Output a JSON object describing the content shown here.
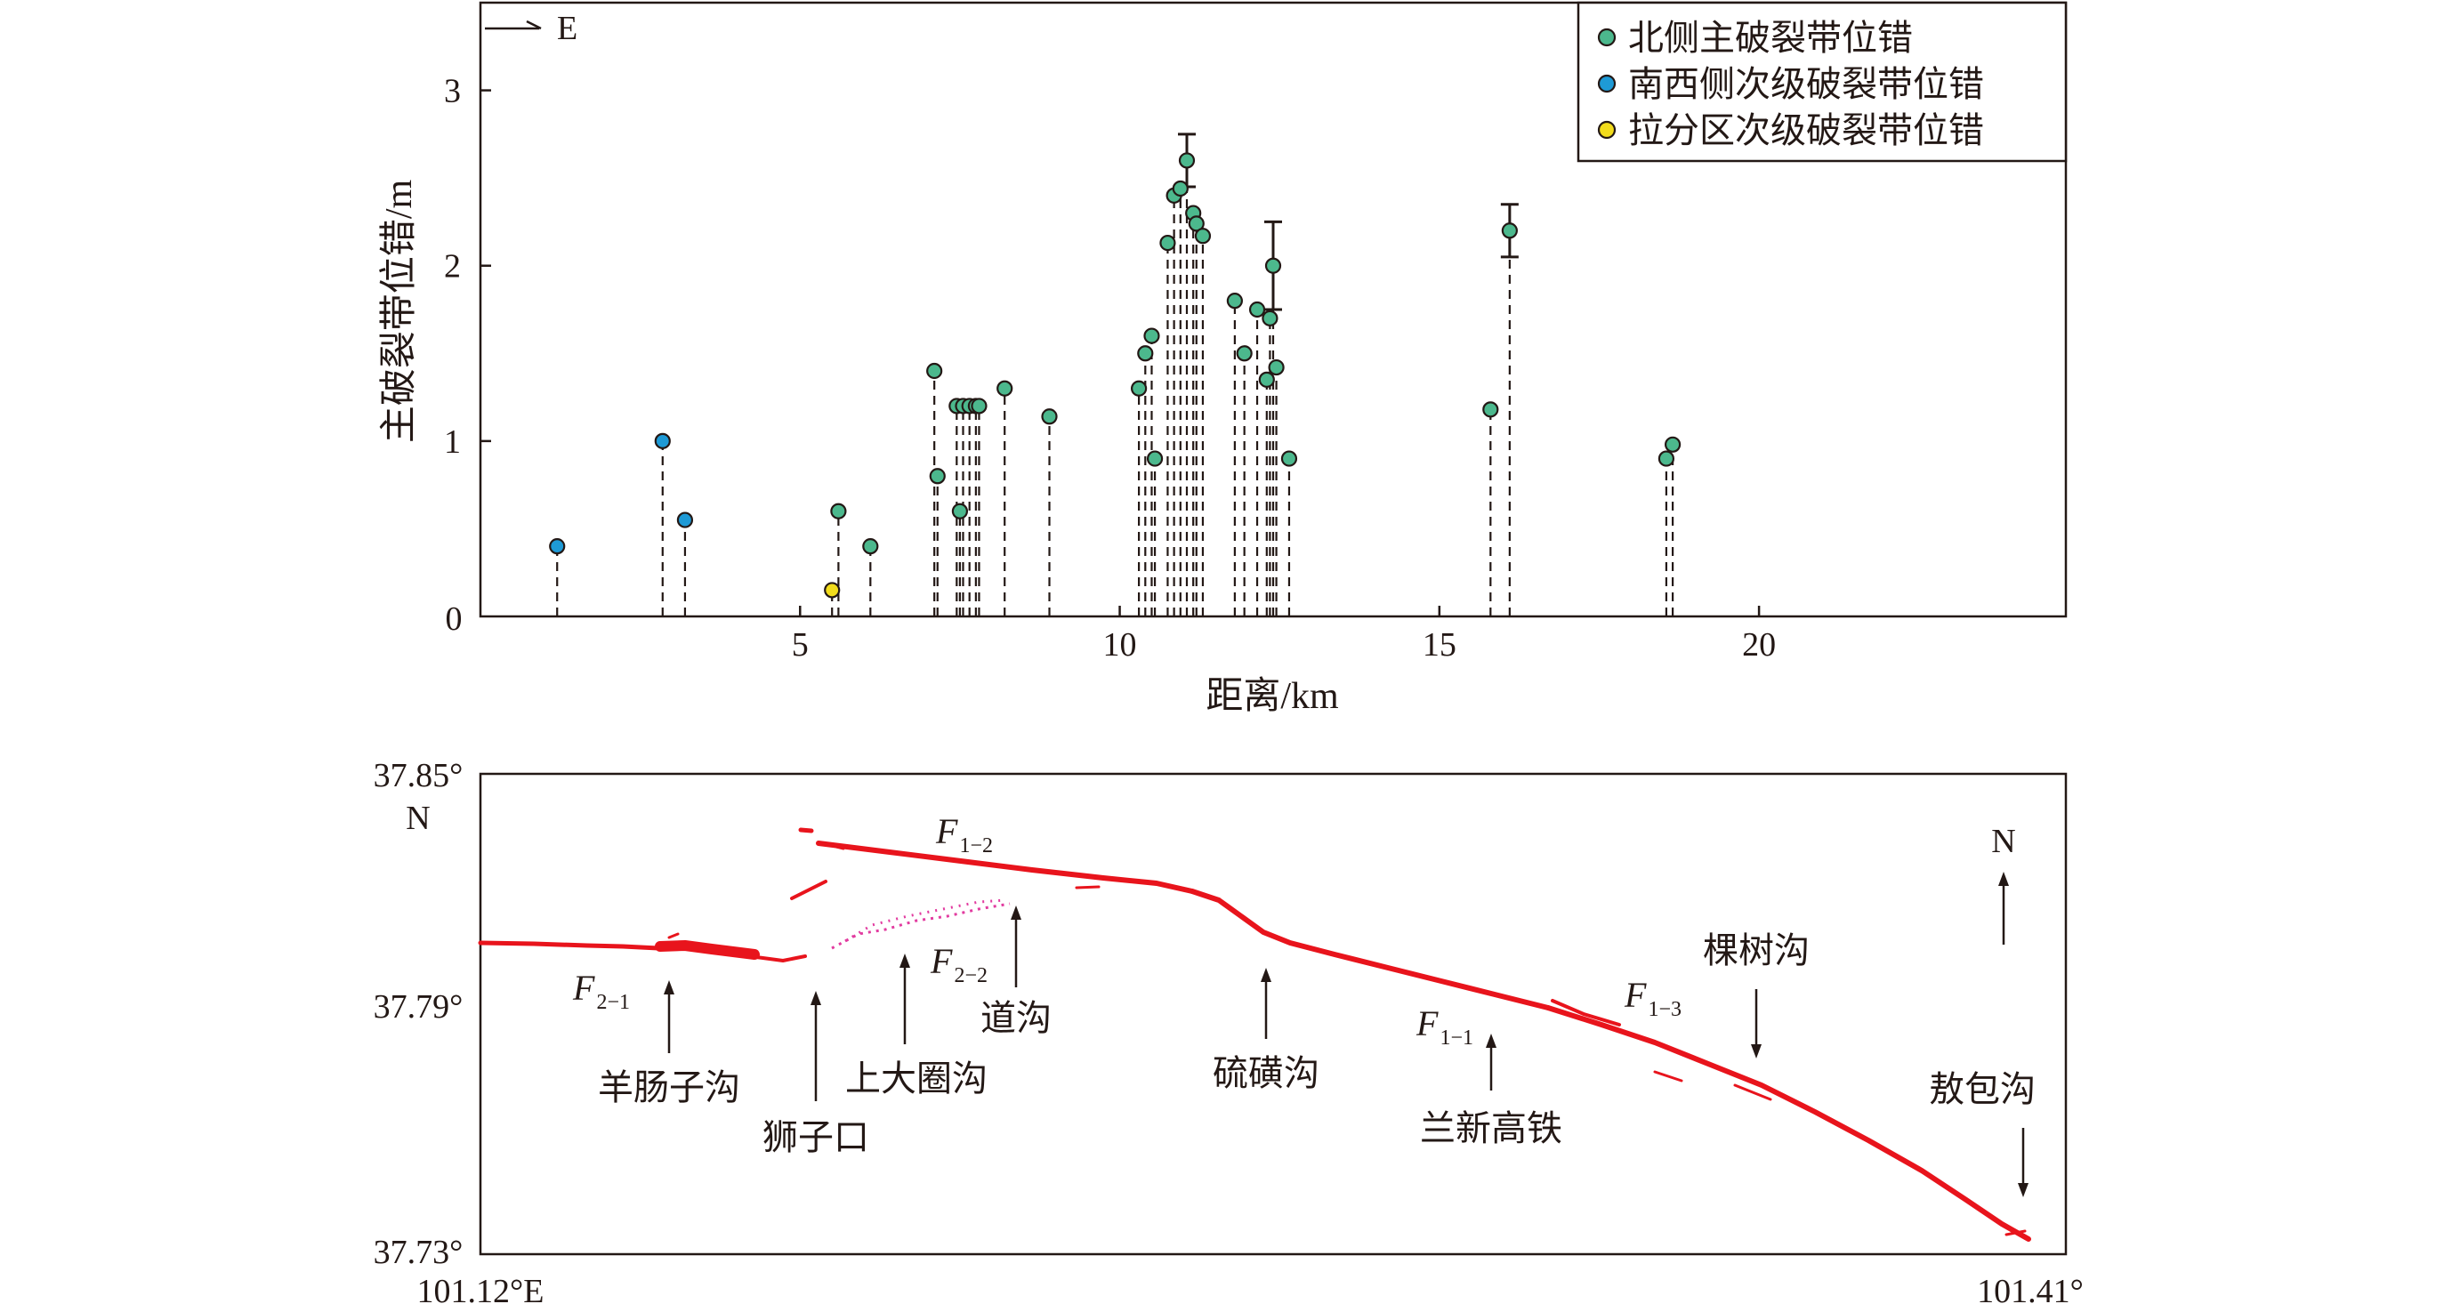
{
  "chart_data": [
    {
      "type": "scatter",
      "xlabel": "距离/km",
      "ylabel": "主破裂带位错/m",
      "xlim": [
        0,
        24.8
      ],
      "ylim": [
        0,
        3.5
      ],
      "xticks": [
        0,
        5,
        10,
        15,
        20
      ],
      "yticks": [
        1,
        2,
        3
      ],
      "origin_label": "0",
      "direction_label": "E",
      "grid": false,
      "legend_position": "top-right",
      "series": [
        {
          "name": "北侧主破裂带位错",
          "color": "#4cb88d",
          "points": [
            {
              "x": 5.6,
              "y": 0.6
            },
            {
              "x": 6.1,
              "y": 0.4
            },
            {
              "x": 7.1,
              "y": 1.4
            },
            {
              "x": 7.15,
              "y": 0.8
            },
            {
              "x": 7.45,
              "y": 1.2
            },
            {
              "x": 7.5,
              "y": 0.6
            },
            {
              "x": 7.55,
              "y": 1.2
            },
            {
              "x": 7.65,
              "y": 1.2
            },
            {
              "x": 7.75,
              "y": 1.2
            },
            {
              "x": 7.8,
              "y": 1.2
            },
            {
              "x": 8.2,
              "y": 1.3
            },
            {
              "x": 8.9,
              "y": 1.14
            },
            {
              "x": 10.3,
              "y": 1.3
            },
            {
              "x": 10.4,
              "y": 1.5
            },
            {
              "x": 10.5,
              "y": 1.6
            },
            {
              "x": 10.55,
              "y": 0.9
            },
            {
              "x": 10.75,
              "y": 2.13
            },
            {
              "x": 10.85,
              "y": 2.4
            },
            {
              "x": 10.95,
              "y": 2.44
            },
            {
              "x": 11.05,
              "y": 2.6,
              "err": [
                2.45,
                2.75
              ]
            },
            {
              "x": 11.15,
              "y": 2.3
            },
            {
              "x": 11.2,
              "y": 2.24
            },
            {
              "x": 11.3,
              "y": 2.17
            },
            {
              "x": 11.8,
              "y": 1.8
            },
            {
              "x": 11.95,
              "y": 1.5
            },
            {
              "x": 12.15,
              "y": 1.75
            },
            {
              "x": 12.3,
              "y": 1.35
            },
            {
              "x": 12.35,
              "y": 1.7
            },
            {
              "x": 12.4,
              "y": 2.0,
              "err": [
                1.75,
                2.25
              ]
            },
            {
              "x": 12.45,
              "y": 1.42
            },
            {
              "x": 12.65,
              "y": 0.9
            },
            {
              "x": 15.8,
              "y": 1.18
            },
            {
              "x": 16.1,
              "y": 2.2,
              "err": [
                2.05,
                2.35
              ]
            },
            {
              "x": 18.55,
              "y": 0.9
            },
            {
              "x": 18.65,
              "y": 0.98
            }
          ]
        },
        {
          "name": "南西侧次级破裂带位错",
          "color": "#1e9ad6",
          "points": [
            {
              "x": 1.2,
              "y": 0.4
            },
            {
              "x": 2.85,
              "y": 1.0
            },
            {
              "x": 3.2,
              "y": 0.55
            }
          ]
        },
        {
          "name": "拉分区次级破裂带位错",
          "color": "#f2dc1c",
          "points": [
            {
              "x": 5.5,
              "y": 0.15
            }
          ]
        }
      ]
    },
    {
      "type": "map",
      "lat_labels": {
        "top": "37.85°",
        "north_suffix": "N",
        "mid": "37.79°",
        "bottom": "37.73°"
      },
      "lon_labels": {
        "left": "101.12°E",
        "right": "101.41°"
      },
      "north_arrow_label": "N",
      "trace_color": "#e8141c",
      "secondary_color": "#e23ca0",
      "fault_labels": [
        {
          "main": "F",
          "sub": "1−2"
        },
        {
          "main": "F",
          "sub": "2−1"
        },
        {
          "main": "F",
          "sub": "2−2"
        },
        {
          "main": "F",
          "sub": "1−1"
        },
        {
          "main": "F",
          "sub": "1−3"
        }
      ],
      "places": [
        "羊肠子沟",
        "狮子口",
        "上大圈沟",
        "道沟",
        "硫磺沟",
        "兰新高铁",
        "棵树沟",
        "敖包沟"
      ]
    }
  ]
}
